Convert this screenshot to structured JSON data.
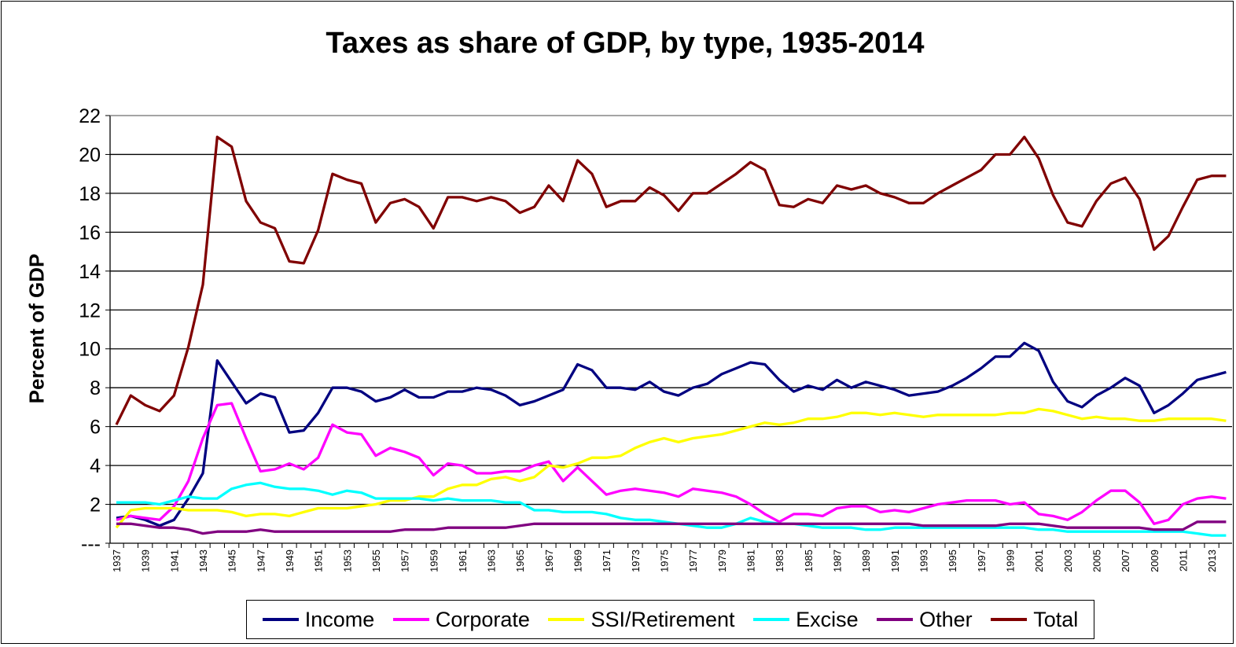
{
  "chart_data": {
    "type": "line",
    "title": "Taxes as share of GDP, by type, 1935-2014",
    "xlabel": "",
    "ylabel": "Percent of GDP",
    "ylim": [
      0,
      22
    ],
    "yticks": [
      0,
      2,
      4,
      6,
      8,
      10,
      12,
      14,
      16,
      18,
      20,
      22
    ],
    "ytick_labels": [
      "---",
      "2",
      "4",
      "6",
      "8",
      "10",
      "12",
      "14",
      "16",
      "18",
      "20",
      "22"
    ],
    "grid": true,
    "legend": "bottom",
    "x_start": 1937,
    "x_end": 2014,
    "series": [
      {
        "name": "Income",
        "color": "#000080",
        "values": [
          1.3,
          1.4,
          1.2,
          0.9,
          1.2,
          2.3,
          3.6,
          9.4,
          8.3,
          7.2,
          7.7,
          7.5,
          5.7,
          5.8,
          6.7,
          8.0,
          8.0,
          7.8,
          7.3,
          7.5,
          7.9,
          7.5,
          7.5,
          7.8,
          7.8,
          8.0,
          7.9,
          7.6,
          7.1,
          7.3,
          7.6,
          7.9,
          9.2,
          8.9,
          8.0,
          8.0,
          7.9,
          8.3,
          7.8,
          7.6,
          8.0,
          8.2,
          8.7,
          9.0,
          9.3,
          9.2,
          8.4,
          7.8,
          8.1,
          7.9,
          8.4,
          8.0,
          8.3,
          8.1,
          7.9,
          7.6,
          7.7,
          7.8,
          8.1,
          8.5,
          9.0,
          9.6,
          9.6,
          10.3,
          9.9,
          8.3,
          7.3,
          7.0,
          7.6,
          8.0,
          8.5,
          8.1,
          6.7,
          7.1,
          7.7,
          8.4,
          8.6,
          8.8
        ]
      },
      {
        "name": "Corporate",
        "color": "#FF00FF",
        "values": [
          1.2,
          1.4,
          1.3,
          1.2,
          1.9,
          3.2,
          5.4,
          7.1,
          7.2,
          5.4,
          3.7,
          3.8,
          4.1,
          3.8,
          4.4,
          6.1,
          5.7,
          5.6,
          4.5,
          4.9,
          4.7,
          4.4,
          3.5,
          4.1,
          4.0,
          3.6,
          3.6,
          3.7,
          3.7,
          4.0,
          4.2,
          3.2,
          3.9,
          3.2,
          2.5,
          2.7,
          2.8,
          2.7,
          2.6,
          2.4,
          2.8,
          2.7,
          2.6,
          2.4,
          2.0,
          1.5,
          1.1,
          1.5,
          1.5,
          1.4,
          1.8,
          1.9,
          1.9,
          1.6,
          1.7,
          1.6,
          1.8,
          2.0,
          2.1,
          2.2,
          2.2,
          2.2,
          2.0,
          2.1,
          1.5,
          1.4,
          1.2,
          1.6,
          2.2,
          2.7,
          2.7,
          2.1,
          1.0,
          1.2,
          2.0,
          2.3,
          2.4,
          2.3
        ]
      },
      {
        "name": "SSI/Retirement",
        "color": "#FFFF00",
        "values": [
          0.8,
          1.7,
          1.8,
          1.8,
          1.8,
          1.7,
          1.7,
          1.7,
          1.6,
          1.4,
          1.5,
          1.5,
          1.4,
          1.6,
          1.8,
          1.8,
          1.8,
          1.9,
          2.0,
          2.2,
          2.2,
          2.4,
          2.4,
          2.8,
          3.0,
          3.0,
          3.3,
          3.4,
          3.2,
          3.4,
          4.0,
          3.9,
          4.1,
          4.4,
          4.4,
          4.5,
          4.9,
          5.2,
          5.4,
          5.2,
          5.4,
          5.5,
          5.6,
          5.8,
          6.0,
          6.2,
          6.1,
          6.2,
          6.4,
          6.4,
          6.5,
          6.7,
          6.7,
          6.6,
          6.7,
          6.6,
          6.5,
          6.6,
          6.6,
          6.6,
          6.6,
          6.6,
          6.7,
          6.7,
          6.9,
          6.8,
          6.6,
          6.4,
          6.5,
          6.4,
          6.4,
          6.3,
          6.3,
          6.4,
          6.4,
          6.4,
          6.4,
          6.3
        ]
      },
      {
        "name": "Excise",
        "color": "#00FFFF",
        "values": [
          2.1,
          2.1,
          2.1,
          2.0,
          2.2,
          2.4,
          2.3,
          2.3,
          2.8,
          3.0,
          3.1,
          2.9,
          2.8,
          2.8,
          2.7,
          2.5,
          2.7,
          2.6,
          2.3,
          2.3,
          2.3,
          2.3,
          2.2,
          2.3,
          2.2,
          2.2,
          2.2,
          2.1,
          2.1,
          1.7,
          1.7,
          1.6,
          1.6,
          1.6,
          1.5,
          1.3,
          1.2,
          1.2,
          1.1,
          1.0,
          0.9,
          0.8,
          0.8,
          1.0,
          1.3,
          1.1,
          1.0,
          1.0,
          0.9,
          0.8,
          0.8,
          0.8,
          0.7,
          0.7,
          0.8,
          0.8,
          0.8,
          0.8,
          0.8,
          0.8,
          0.8,
          0.8,
          0.8,
          0.8,
          0.7,
          0.7,
          0.6,
          0.6,
          0.6,
          0.6,
          0.6,
          0.6,
          0.6,
          0.6,
          0.6,
          0.5,
          0.4,
          0.4
        ]
      },
      {
        "name": "Other",
        "color": "#800080",
        "values": [
          1.0,
          1.0,
          0.9,
          0.8,
          0.8,
          0.7,
          0.5,
          0.6,
          0.6,
          0.6,
          0.7,
          0.6,
          0.6,
          0.6,
          0.6,
          0.6,
          0.6,
          0.6,
          0.6,
          0.6,
          0.7,
          0.7,
          0.7,
          0.8,
          0.8,
          0.8,
          0.8,
          0.8,
          0.9,
          1.0,
          1.0,
          1.0,
          1.0,
          1.0,
          1.0,
          1.0,
          1.0,
          1.0,
          1.0,
          1.0,
          1.0,
          1.0,
          1.0,
          1.0,
          1.0,
          1.0,
          1.0,
          1.0,
          1.0,
          1.0,
          1.0,
          1.0,
          1.0,
          1.0,
          1.0,
          1.0,
          0.9,
          0.9,
          0.9,
          0.9,
          0.9,
          0.9,
          1.0,
          1.0,
          1.0,
          0.9,
          0.8,
          0.8,
          0.8,
          0.8,
          0.8,
          0.8,
          0.7,
          0.7,
          0.7,
          1.1,
          1.1,
          1.1
        ]
      },
      {
        "name": "Total",
        "color": "#800000",
        "values": [
          6.1,
          7.6,
          7.1,
          6.8,
          7.6,
          10.1,
          13.3,
          20.9,
          20.4,
          17.6,
          16.5,
          16.2,
          14.5,
          14.4,
          16.1,
          19.0,
          18.7,
          18.5,
          16.5,
          17.5,
          17.7,
          17.3,
          16.2,
          17.8,
          17.8,
          17.6,
          17.8,
          17.6,
          17.0,
          17.3,
          18.4,
          17.6,
          19.7,
          19.0,
          17.3,
          17.6,
          17.6,
          18.3,
          17.9,
          17.1,
          18.0,
          18.0,
          18.5,
          19.0,
          19.6,
          19.2,
          17.4,
          17.3,
          17.7,
          17.5,
          18.4,
          18.2,
          18.4,
          18.0,
          17.8,
          17.5,
          17.5,
          18.0,
          18.4,
          18.8,
          19.2,
          20.0,
          20.0,
          20.9,
          19.8,
          17.9,
          16.5,
          16.3,
          17.6,
          18.5,
          18.8,
          17.7,
          15.1,
          15.8,
          17.3,
          18.7,
          18.9,
          18.9
        ]
      }
    ]
  }
}
